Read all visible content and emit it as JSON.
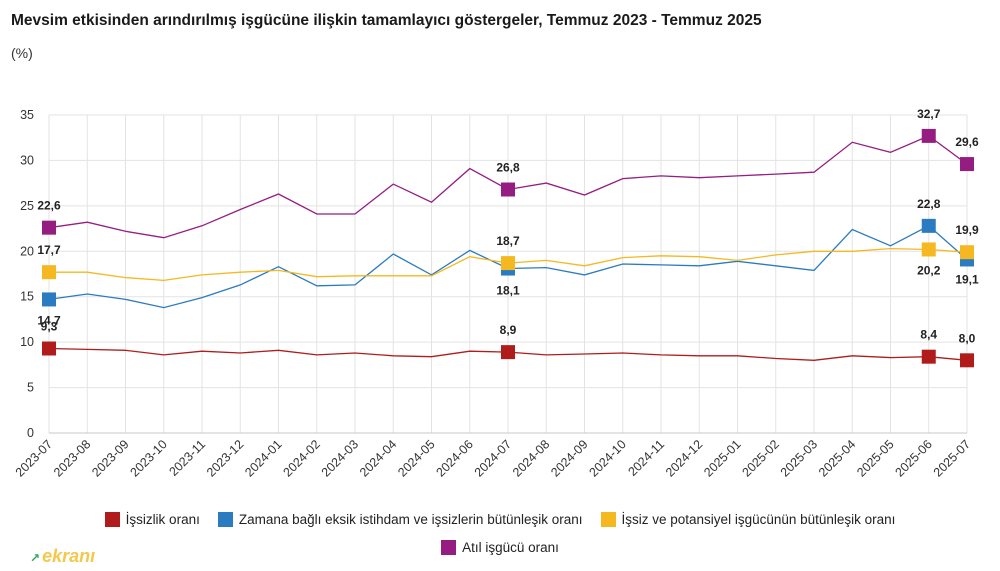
{
  "header": {
    "title": "Mevsim etkisinden arındırılmış işgücüne ilişkin tamamlayıcı göstergeler, Temmuz 2023 - Temmuz 2025",
    "subtitle": "(%)"
  },
  "watermark": {
    "text": "ekranı",
    "icon": "trend-arrow-icon"
  },
  "chart_data": {
    "type": "line",
    "title": "Mevsim etkisinden arındırılmış işgücüne ilişkin tamamlayıcı göstergeler, Temmuz 2023 - Temmuz 2025",
    "subtitle": "(%)",
    "xlabel": "",
    "ylabel": "",
    "ylim": [
      0,
      35
    ],
    "yticks": [
      0,
      5,
      10,
      15,
      20,
      25,
      30,
      35
    ],
    "grid": true,
    "legend_position": "bottom",
    "categories": [
      "2023-07",
      "2023-08",
      "2023-09",
      "2023-10",
      "2023-11",
      "2023-12",
      "2024-01",
      "2024-02",
      "2024-03",
      "2024-04",
      "2024-05",
      "2024-06",
      "2024-07",
      "2024-08",
      "2024-09",
      "2024-10",
      "2024-11",
      "2024-12",
      "2025-01",
      "2025-02",
      "2025-03",
      "2025-04",
      "2025-05",
      "2025-06",
      "2025-07"
    ],
    "series": [
      {
        "name": "İşsizlik oranı",
        "color": "#b01c1c",
        "values": [
          9.3,
          9.2,
          9.1,
          8.6,
          9.0,
          8.8,
          9.1,
          8.6,
          8.8,
          8.5,
          8.4,
          9.0,
          8.9,
          8.6,
          8.7,
          8.8,
          8.6,
          8.5,
          8.5,
          8.2,
          8.0,
          8.5,
          8.3,
          8.4,
          8.0
        ],
        "labels": [
          {
            "index": 0,
            "text": "9,3"
          },
          {
            "index": 12,
            "text": "8,9"
          },
          {
            "index": 23,
            "text": "8,4"
          },
          {
            "index": 24,
            "text": "8,0"
          }
        ]
      },
      {
        "name": "Zamana bağlı eksik istihdam ve işsizlerin bütünleşik oranı",
        "color": "#2b7bc0",
        "values": [
          14.7,
          15.3,
          14.7,
          13.8,
          14.9,
          16.3,
          18.3,
          16.2,
          16.3,
          19.7,
          17.4,
          20.1,
          18.1,
          18.2,
          17.4,
          18.6,
          18.5,
          18.4,
          18.9,
          18.4,
          17.9,
          22.4,
          20.6,
          22.8,
          19.1
        ],
        "labels": [
          {
            "index": 0,
            "text": "14,7"
          },
          {
            "index": 12,
            "text": "18,1"
          },
          {
            "index": 23,
            "text": "22,8"
          },
          {
            "index": 24,
            "text": "19,1"
          }
        ]
      },
      {
        "name": "İşsiz ve potansiyel işgücünün bütünleşik oranı",
        "color": "#f5b820",
        "values": [
          17.7,
          17.7,
          17.1,
          16.8,
          17.4,
          17.7,
          17.9,
          17.2,
          17.3,
          17.3,
          17.3,
          19.4,
          18.7,
          19.0,
          18.4,
          19.3,
          19.5,
          19.4,
          19.0,
          19.6,
          20.0,
          20.0,
          20.3,
          20.2,
          19.9
        ],
        "labels": [
          {
            "index": 0,
            "text": "17,7"
          },
          {
            "index": 12,
            "text": "18,7"
          },
          {
            "index": 23,
            "text": "20,2"
          },
          {
            "index": 24,
            "text": "19,9"
          }
        ]
      },
      {
        "name": "Atıl işgücü oranı",
        "color": "#951d82",
        "values": [
          22.6,
          23.2,
          22.2,
          21.5,
          22.8,
          24.6,
          26.3,
          24.1,
          24.1,
          27.4,
          25.4,
          29.1,
          26.8,
          27.5,
          26.2,
          28.0,
          28.3,
          28.1,
          28.3,
          28.5,
          28.7,
          32.0,
          30.9,
          32.7,
          29.6
        ],
        "labels": [
          {
            "index": 0,
            "text": "22,6"
          },
          {
            "index": 12,
            "text": "26,8"
          },
          {
            "index": 23,
            "text": "32,7"
          },
          {
            "index": 24,
            "text": "29,6"
          }
        ]
      }
    ]
  },
  "legend": {
    "rows": [
      [
        0,
        1,
        2
      ],
      [
        3
      ]
    ]
  }
}
